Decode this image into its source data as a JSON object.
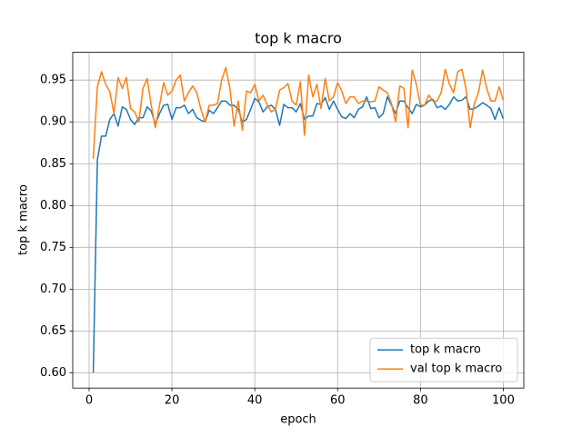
{
  "chart_data": {
    "type": "line",
    "title": "top k macro",
    "xlabel": "epoch",
    "ylabel": "top k macro",
    "x": [
      1,
      2,
      3,
      4,
      5,
      6,
      7,
      8,
      9,
      10,
      11,
      12,
      13,
      14,
      15,
      16,
      17,
      18,
      19,
      20,
      21,
      22,
      23,
      24,
      25,
      26,
      27,
      28,
      29,
      30,
      31,
      32,
      33,
      34,
      35,
      36,
      37,
      38,
      39,
      40,
      41,
      42,
      43,
      44,
      45,
      46,
      47,
      48,
      49,
      50,
      51,
      52,
      53,
      54,
      55,
      56,
      57,
      58,
      59,
      60,
      61,
      62,
      63,
      64,
      65,
      66,
      67,
      68,
      69,
      70,
      71,
      72,
      73,
      74,
      75,
      76,
      77,
      78,
      79,
      80,
      81,
      82,
      83,
      84,
      85,
      86,
      87,
      88,
      89,
      90,
      91,
      92,
      93,
      94,
      95,
      96,
      97,
      98,
      99,
      100
    ],
    "series": [
      {
        "name": "top k macro",
        "color": "#1f77b4",
        "values": [
          0.6,
          0.855,
          0.883,
          0.883,
          0.903,
          0.91,
          0.895,
          0.918,
          0.915,
          0.903,
          0.897,
          0.905,
          0.905,
          0.918,
          0.913,
          0.897,
          0.91,
          0.92,
          0.921,
          0.903,
          0.917,
          0.917,
          0.92,
          0.91,
          0.915,
          0.905,
          0.902,
          0.9,
          0.914,
          0.91,
          0.917,
          0.925,
          0.925,
          0.92,
          0.92,
          0.915,
          0.9,
          0.903,
          0.915,
          0.928,
          0.924,
          0.912,
          0.918,
          0.92,
          0.915,
          0.896,
          0.921,
          0.917,
          0.917,
          0.912,
          0.922,
          0.903,
          0.907,
          0.907,
          0.922,
          0.921,
          0.929,
          0.915,
          0.925,
          0.915,
          0.906,
          0.904,
          0.91,
          0.905,
          0.915,
          0.918,
          0.93,
          0.916,
          0.917,
          0.905,
          0.91,
          0.93,
          0.92,
          0.91,
          0.925,
          0.925,
          0.917,
          0.91,
          0.921,
          0.918,
          0.92,
          0.925,
          0.927,
          0.917,
          0.919,
          0.915,
          0.921,
          0.93,
          0.925,
          0.926,
          0.93,
          0.915,
          0.916,
          0.919,
          0.923,
          0.92,
          0.916,
          0.903,
          0.917,
          0.904
        ]
      },
      {
        "name": "val top k macro",
        "color": "#ff7f0e",
        "values": [
          0.856,
          0.942,
          0.96,
          0.945,
          0.936,
          0.91,
          0.953,
          0.94,
          0.953,
          0.916,
          0.912,
          0.9,
          0.94,
          0.952,
          0.92,
          0.893,
          0.92,
          0.947,
          0.932,
          0.937,
          0.95,
          0.956,
          0.925,
          0.935,
          0.943,
          0.935,
          0.915,
          0.9,
          0.92,
          0.92,
          0.922,
          0.95,
          0.965,
          0.94,
          0.895,
          0.925,
          0.89,
          0.937,
          0.935,
          0.945,
          0.925,
          0.932,
          0.92,
          0.912,
          0.915,
          0.938,
          0.941,
          0.946,
          0.925,
          0.92,
          0.948,
          0.884,
          0.956,
          0.93,
          0.945,
          0.916,
          0.952,
          0.925,
          0.93,
          0.947,
          0.937,
          0.922,
          0.93,
          0.93,
          0.922,
          0.925,
          0.925,
          0.924,
          0.925,
          0.942,
          0.938,
          0.935,
          0.922,
          0.9,
          0.943,
          0.94,
          0.893,
          0.962,
          0.945,
          0.92,
          0.92,
          0.932,
          0.925,
          0.925,
          0.935,
          0.963,
          0.945,
          0.935,
          0.96,
          0.963,
          0.94,
          0.893,
          0.922,
          0.935,
          0.962,
          0.94,
          0.925,
          0.925,
          0.942,
          0.926
        ]
      }
    ],
    "xlim": [
      -3.95,
      104.95
    ],
    "xticks": [
      0,
      20,
      40,
      60,
      80,
      100
    ],
    "ylim": [
      0.58175,
      0.98325
    ],
    "yticks": [
      {
        "value": 0.6,
        "label": "0.60"
      },
      0.65,
      {
        "value": 0.7,
        "label": "0.70"
      },
      0.75,
      {
        "value": 0.8,
        "label": "0.80"
      },
      0.85,
      {
        "value": 0.9,
        "label": "0.90"
      },
      0.95
    ],
    "grid": true,
    "legend": "lower right"
  }
}
